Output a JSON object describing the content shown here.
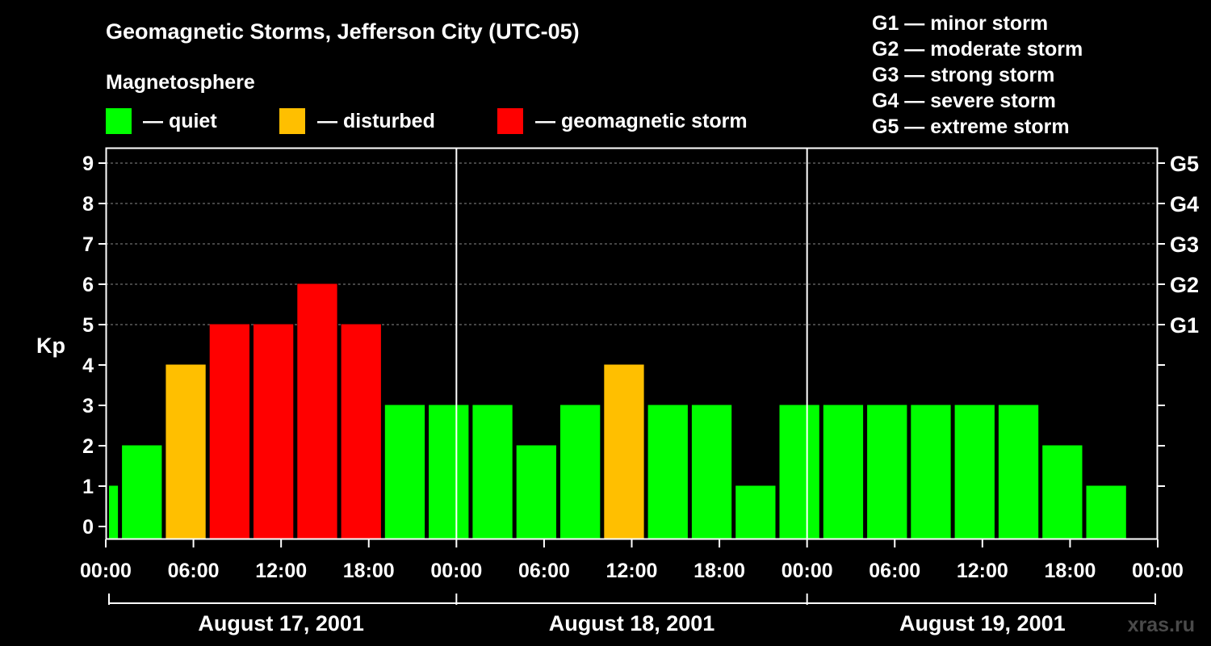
{
  "chart_data": {
    "type": "bar",
    "title": "Geomagnetic Storms, Jefferson City (UTC-05)",
    "ylabel": "Kp",
    "ylim": [
      0,
      9
    ],
    "y_ticks": [
      "0",
      "1",
      "2",
      "3",
      "4",
      "5",
      "6",
      "7",
      "8",
      "9"
    ],
    "right_ticks": [
      {
        "kp": 5,
        "label": "G1"
      },
      {
        "kp": 6,
        "label": "G2"
      },
      {
        "kp": 7,
        "label": "G3"
      },
      {
        "kp": 8,
        "label": "G4"
      },
      {
        "kp": 9,
        "label": "G5"
      }
    ],
    "x_ticks": [
      "00:00",
      "06:00",
      "12:00",
      "18:00",
      "00:00",
      "06:00",
      "12:00",
      "18:00",
      "00:00",
      "06:00",
      "12:00",
      "18:00",
      "00:00"
    ],
    "days": [
      "August 17, 2001",
      "August 18, 2001",
      "August 19, 2001"
    ],
    "interval_hours": 3,
    "offset_hours": -2,
    "values": [
      1,
      2,
      4,
      5,
      5,
      6,
      5,
      3,
      3,
      3,
      2,
      3,
      4,
      3,
      3,
      1,
      3,
      3,
      3,
      3,
      3,
      3,
      2,
      1
    ],
    "colors": {
      "quiet": "#00ff00",
      "disturbed": "#ffbf00",
      "storm": "#ff0000"
    },
    "gridlines": "dashed, at Kp 5 to 9"
  },
  "legend": {
    "heading": "Magnetosphere",
    "items": [
      {
        "label": "— quiet",
        "color": "#00ff00"
      },
      {
        "label": "— disturbed",
        "color": "#ffbf00"
      },
      {
        "label": "— geomagnetic storm",
        "color": "#ff0000"
      }
    ]
  },
  "scale_legend": [
    "G1 — minor storm",
    "G2 — moderate storm",
    "G3 — strong storm",
    "G4 — severe storm",
    "G5 — extreme storm"
  ],
  "watermark": "xras.ru"
}
